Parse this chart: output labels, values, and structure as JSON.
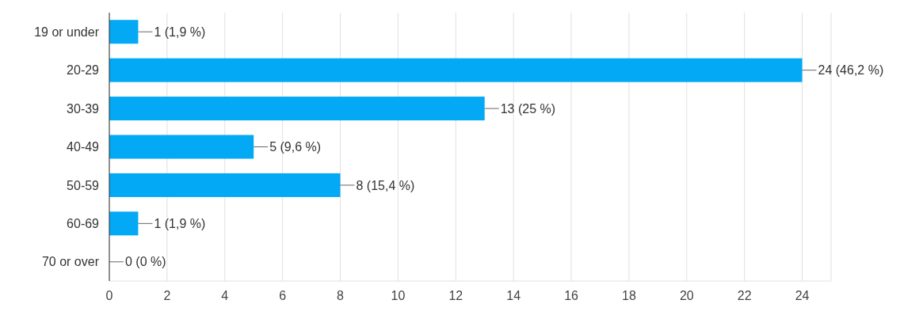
{
  "chart_data": {
    "type": "bar",
    "orientation": "horizontal",
    "categories": [
      "19 or under",
      "20-29",
      "30-39",
      "40-49",
      "50-59",
      "60-69",
      "70 or over"
    ],
    "values": [
      1,
      24,
      13,
      5,
      8,
      1,
      0
    ],
    "value_labels": [
      "1 (1,9 %)",
      "24 (46,2 %)",
      "13 (25 %)",
      "5 (9,6 %)",
      "8 (15,4 %)",
      "1 (1,9 %)",
      "0 (0 %)"
    ],
    "color": "#03a9f4",
    "xlim": [
      0,
      25
    ],
    "xticks": [
      0,
      2,
      4,
      6,
      8,
      10,
      12,
      14,
      16,
      18,
      20,
      22,
      24
    ],
    "grid": "x"
  }
}
